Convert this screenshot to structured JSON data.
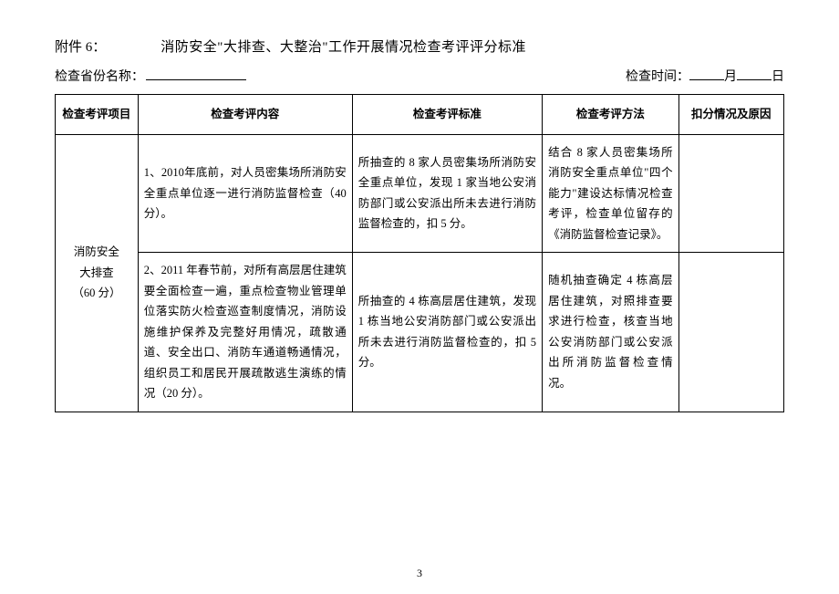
{
  "header": {
    "attachment_label": "附件 6：",
    "main_title": "消防安全\"大排查、大整治\"工作开展情况检查考评评分标准",
    "province_label": "检查省份名称：",
    "time_label": "检查时间：",
    "month_char": "月",
    "day_char": "日"
  },
  "table": {
    "headers": {
      "col1": "检查考评项目",
      "col2": "检查考评内容",
      "col3": "检查考评标准",
      "col4": "检查考评方法",
      "col5": "扣分情况及原因"
    },
    "project_cell": "消防安全\n大排查\n（60 分）",
    "rows": [
      {
        "content": "1、2010年底前，对人员密集场所消防安全重点单位逐一进行消防监督检查（40分）。",
        "standard": "所抽查的 8 家人员密集场所消防安全重点单位，发现 1 家当地公安消防部门或公安派出所未去进行消防监督检查的，扣 5 分。",
        "method": "结合 8 家人员密集场所消防安全重点单位\"四个能力\"建设达标情况检查考评，检查单位留存的《消防监督检查记录》。",
        "deduct": ""
      },
      {
        "content": "2、2011 年春节前，对所有高层居住建筑要全面检查一遍，重点检查物业管理单位落实防火检查巡查制度情况，消防设施维护保养及完整好用情况，疏散通道、安全出口、消防车通道畅通情况，组织员工和居民开展疏散逃生演练的情况（20 分）。",
        "standard": "所抽查的 4 栋高层居住建筑，发现 1 栋当地公安消防部门或公安派出所未去进行消防监督检查的，扣 5 分。",
        "method": "随机抽查确定 4 栋高层居住建筑，对照排查要求进行检查，核查当地公安消防部门或公安派出所消防监督检查情况。",
        "deduct": ""
      }
    ]
  },
  "page_number": "3"
}
